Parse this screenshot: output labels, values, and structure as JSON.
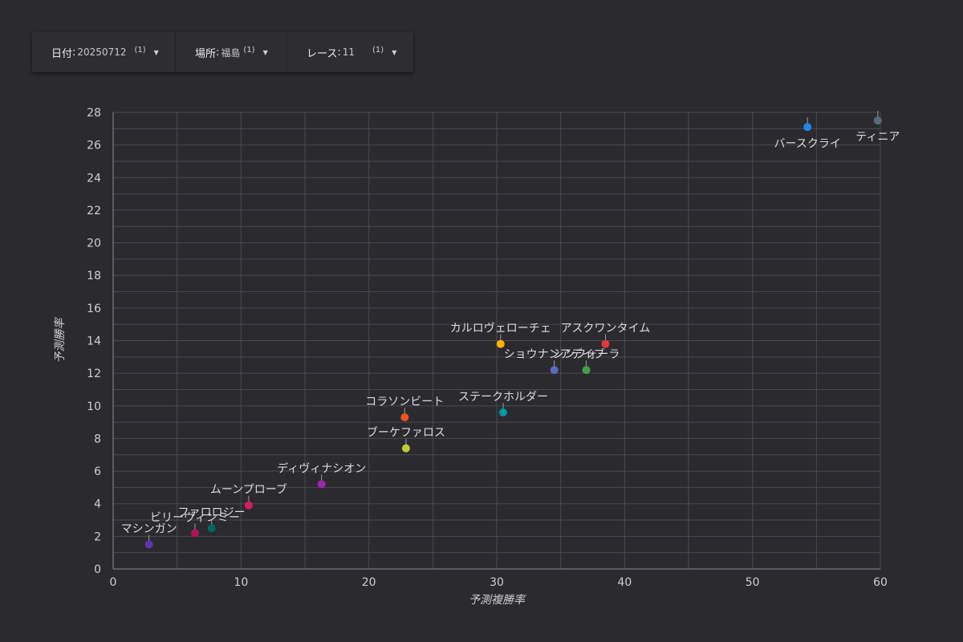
{
  "filters": [
    {
      "label": "日付",
      "value": "20250712",
      "count": "(1)"
    },
    {
      "label": "場所",
      "value": "福島",
      "count": "(1)"
    },
    {
      "label": "レース",
      "value": "11",
      "count": "(1)"
    }
  ],
  "chart_data": {
    "type": "scatter",
    "title": "",
    "xlabel": "予測複勝率",
    "ylabel": "予測勝率",
    "xlim": [
      0,
      60
    ],
    "ylim": [
      0,
      28
    ],
    "x_ticks": [
      0,
      10,
      20,
      30,
      40,
      50,
      60
    ],
    "y_ticks": [
      0,
      2,
      4,
      6,
      8,
      10,
      12,
      14,
      16,
      18,
      20,
      22,
      24,
      26,
      28
    ],
    "grid": true,
    "points": [
      {
        "name": "マシンガン",
        "x": 2.8,
        "y": 1.5,
        "color": "#5e35b1"
      },
      {
        "name": "ビリーヴィンミー",
        "x": 6.4,
        "y": 2.2,
        "color": "#ad1457"
      },
      {
        "name": "ファロロジー",
        "x": 7.7,
        "y": 2.5,
        "color": "#00695c"
      },
      {
        "name": "ムーンプローブ",
        "x": 10.6,
        "y": 3.9,
        "color": "#d81b60"
      },
      {
        "name": "ディヴィナシオン",
        "x": 16.3,
        "y": 5.2,
        "color": "#9c27b0"
      },
      {
        "name": "ブーケファロス",
        "x": 22.9,
        "y": 7.4,
        "color": "#c0ca33"
      },
      {
        "name": "コラソンビート",
        "x": 22.8,
        "y": 9.3,
        "color": "#f4511e"
      },
      {
        "name": "ステークホルダー",
        "x": 30.5,
        "y": 9.6,
        "color": "#0097a7"
      },
      {
        "name": "カルロヴェローチェ",
        "x": 30.3,
        "y": 13.8,
        "color": "#ffb300"
      },
      {
        "name": "アスクワンタイム",
        "x": 38.5,
        "y": 13.8,
        "color": "#e53935"
      },
      {
        "name": "ショウナンアデイブ",
        "x": 34.5,
        "y": 12.2,
        "color": "#5c6bc0"
      },
      {
        "name": "シンフォーラ",
        "x": 37.0,
        "y": 12.2,
        "color": "#43a047"
      },
      {
        "name": "バースクライ",
        "x": 54.3,
        "y": 27.1,
        "color": "#1e88e5"
      },
      {
        "name": "ティニア",
        "x": 59.8,
        "y": 27.5,
        "color": "#546e7a"
      }
    ]
  }
}
